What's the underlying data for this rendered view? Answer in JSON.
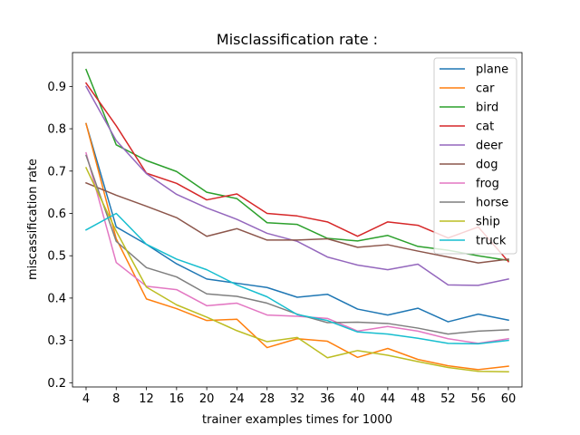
{
  "chart_data": {
    "type": "line",
    "title": "Misclassification rate :",
    "xlabel": "trainer examples times for 1000",
    "ylabel": "miscassification rate",
    "x": [
      4,
      8,
      12,
      16,
      20,
      24,
      28,
      32,
      36,
      40,
      44,
      48,
      52,
      56,
      60
    ],
    "xlim": [
      2.2,
      61.8
    ],
    "ylim": [
      0.19,
      0.98
    ],
    "xticks": [
      4,
      8,
      12,
      16,
      20,
      24,
      28,
      32,
      36,
      40,
      44,
      48,
      52,
      56,
      60
    ],
    "yticks": [
      0.2,
      0.3,
      0.4,
      0.5,
      0.6,
      0.7,
      0.8,
      0.9
    ],
    "grid": false,
    "legend_position": "top-right",
    "series": [
      {
        "name": "plane",
        "color": "#1f77b4",
        "values": [
          0.812,
          0.568,
          0.527,
          0.481,
          0.445,
          0.435,
          0.425,
          0.402,
          0.409,
          0.374,
          0.36,
          0.376,
          0.344,
          0.362,
          0.348
        ]
      },
      {
        "name": "car",
        "color": "#ff7f0e",
        "values": [
          0.812,
          0.54,
          0.398,
          0.375,
          0.347,
          0.35,
          0.283,
          0.304,
          0.298,
          0.26,
          0.281,
          0.255,
          0.24,
          0.231,
          0.239
        ]
      },
      {
        "name": "bird",
        "color": "#2ca02c",
        "values": [
          0.94,
          0.762,
          0.725,
          0.699,
          0.65,
          0.635,
          0.578,
          0.574,
          0.541,
          0.535,
          0.548,
          0.522,
          0.513,
          0.5,
          0.489
        ]
      },
      {
        "name": "cat",
        "color": "#d62728",
        "values": [
          0.908,
          0.807,
          0.695,
          0.671,
          0.632,
          0.646,
          0.6,
          0.594,
          0.58,
          0.546,
          0.58,
          0.572,
          0.542,
          0.568,
          0.486
        ]
      },
      {
        "name": "deer",
        "color": "#9467bd",
        "values": [
          0.9,
          0.772,
          0.694,
          0.645,
          0.613,
          0.586,
          0.553,
          0.534,
          0.497,
          0.478,
          0.467,
          0.48,
          0.431,
          0.43,
          0.445
        ]
      },
      {
        "name": "dog",
        "color": "#8c564b",
        "values": [
          0.672,
          0.643,
          0.617,
          0.59,
          0.546,
          0.564,
          0.537,
          0.537,
          0.54,
          0.52,
          0.526,
          0.511,
          0.497,
          0.483,
          0.492
        ]
      },
      {
        "name": "frog",
        "color": "#e377c2",
        "values": [
          0.743,
          0.484,
          0.428,
          0.42,
          0.382,
          0.388,
          0.36,
          0.357,
          0.352,
          0.322,
          0.333,
          0.322,
          0.304,
          0.293,
          0.304
        ]
      },
      {
        "name": "horse",
        "color": "#7f7f7f",
        "values": [
          0.737,
          0.534,
          0.472,
          0.45,
          0.41,
          0.404,
          0.388,
          0.362,
          0.342,
          0.343,
          0.34,
          0.329,
          0.315,
          0.322,
          0.325
        ]
      },
      {
        "name": "ship",
        "color": "#bcbd22",
        "values": [
          0.708,
          0.558,
          0.426,
          0.384,
          0.355,
          0.323,
          0.297,
          0.307,
          0.259,
          0.276,
          0.265,
          0.25,
          0.236,
          0.227,
          0.226
        ]
      },
      {
        "name": "truck",
        "color": "#17becf",
        "values": [
          0.561,
          0.6,
          0.527,
          0.492,
          0.467,
          0.431,
          0.403,
          0.361,
          0.347,
          0.32,
          0.315,
          0.305,
          0.293,
          0.292,
          0.3
        ]
      }
    ]
  }
}
